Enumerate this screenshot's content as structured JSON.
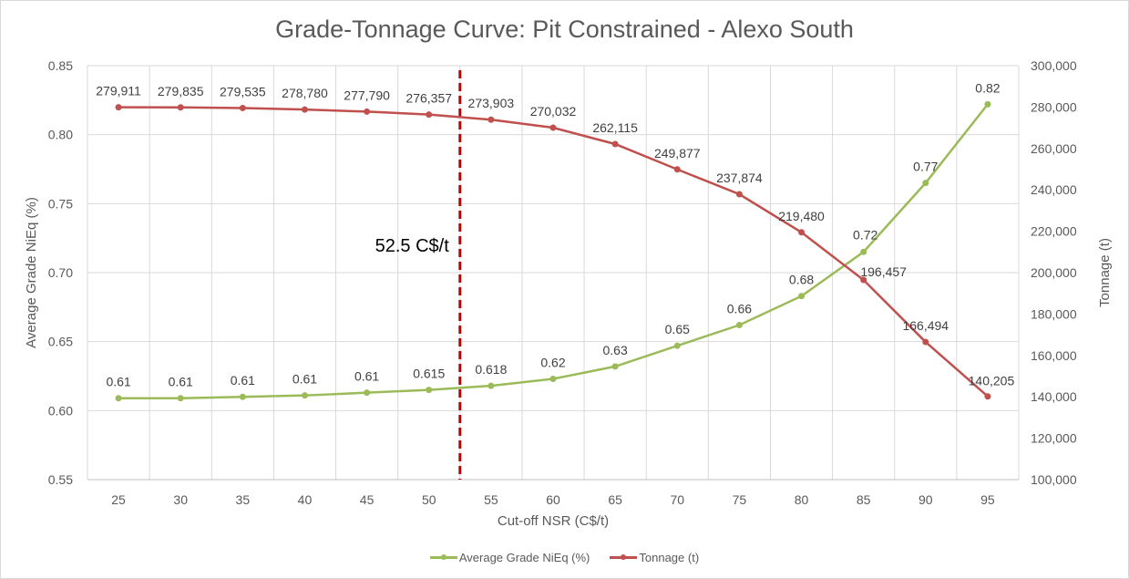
{
  "chart_data": {
    "type": "line",
    "title": "Grade-Tonnage Curve: Pit Constrained - Alexo South",
    "xlabel": "Cut-off NSR (C$/t)",
    "ylabel": "Average Grade NiEq (%)",
    "y2label": "Tonnage (t)",
    "categories": [
      "25",
      "30",
      "35",
      "40",
      "45",
      "50",
      "55",
      "60",
      "65",
      "70",
      "75",
      "80",
      "85",
      "90",
      "95"
    ],
    "ylim": [
      0.55,
      0.85
    ],
    "y_ticks": [
      "0.55",
      "0.60",
      "0.65",
      "0.70",
      "0.75",
      "0.80",
      "0.85"
    ],
    "y2lim": [
      100000,
      300000
    ],
    "y2_ticks": [
      "100,000",
      "120,000",
      "140,000",
      "160,000",
      "180,000",
      "200,000",
      "220,000",
      "240,000",
      "260,000",
      "280,000",
      "300,000"
    ],
    "grid": true,
    "legend_position": "bottom",
    "series": [
      {
        "name": "Average Grade NiEq (%)",
        "axis": "left",
        "color": "#9bbb59",
        "values": [
          0.609,
          0.609,
          0.61,
          0.611,
          0.613,
          0.615,
          0.618,
          0.623,
          0.632,
          0.647,
          0.662,
          0.683,
          0.715,
          0.765,
          0.822
        ],
        "labels": [
          "0.61",
          "0.61",
          "0.61",
          "0.61",
          "0.61",
          "0.615",
          "0.618",
          "0.62",
          "0.63",
          "0.65",
          "0.66",
          "0.68",
          "0.72",
          "0.77",
          "0.82"
        ]
      },
      {
        "name": "Tonnage (t)",
        "axis": "right",
        "color": "#c0504d",
        "values": [
          279911,
          279835,
          279535,
          278780,
          277790,
          276357,
          273903,
          270032,
          262115,
          249877,
          237874,
          219480,
          196457,
          166494,
          140205
        ],
        "labels": [
          "279,911",
          "279,835",
          "279,535",
          "278,780",
          "277,790",
          "276,357",
          "273,903",
          "270,032",
          "262,115",
          "249,877",
          "237,874",
          "219,480",
          "196,457",
          "166,494",
          "140,205"
        ]
      }
    ],
    "annotation": {
      "x": 52.5,
      "label": "52.5 C$/t",
      "color": "#c00000"
    }
  }
}
